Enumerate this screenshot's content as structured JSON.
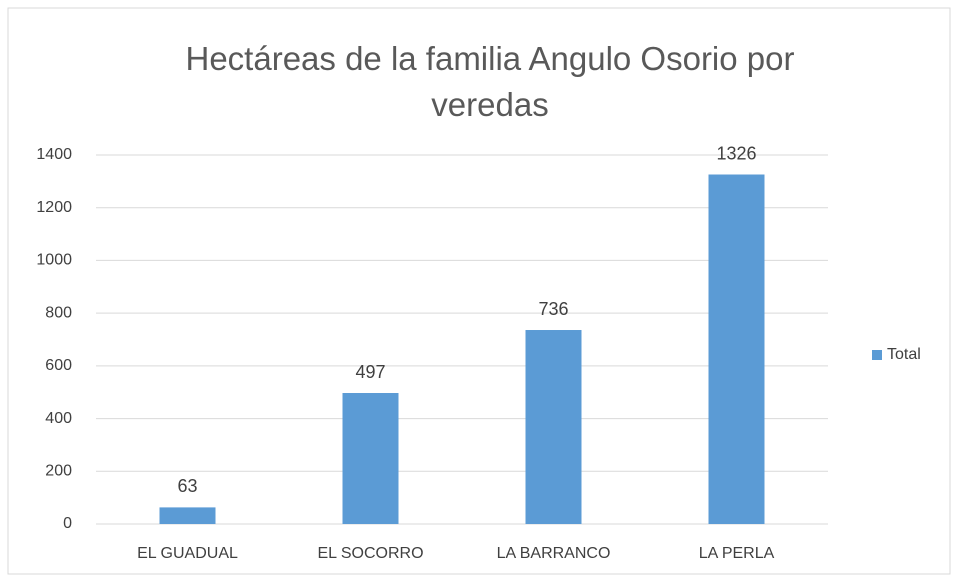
{
  "chart_data": {
    "type": "bar",
    "title": "Hectáreas de la familia Angulo Osorio por veredas",
    "categories": [
      "EL GUADUAL",
      "EL SOCORRO",
      "LA BARRANCO",
      "LA PERLA"
    ],
    "series": [
      {
        "name": "Total",
        "color": "#5b9bd5",
        "values": [
          63,
          497,
          736,
          1326
        ]
      }
    ],
    "ylim": [
      0,
      1400
    ],
    "yticks": [
      0,
      200,
      400,
      600,
      800,
      1000,
      1200,
      1400
    ],
    "grid": true,
    "legend": "right"
  }
}
